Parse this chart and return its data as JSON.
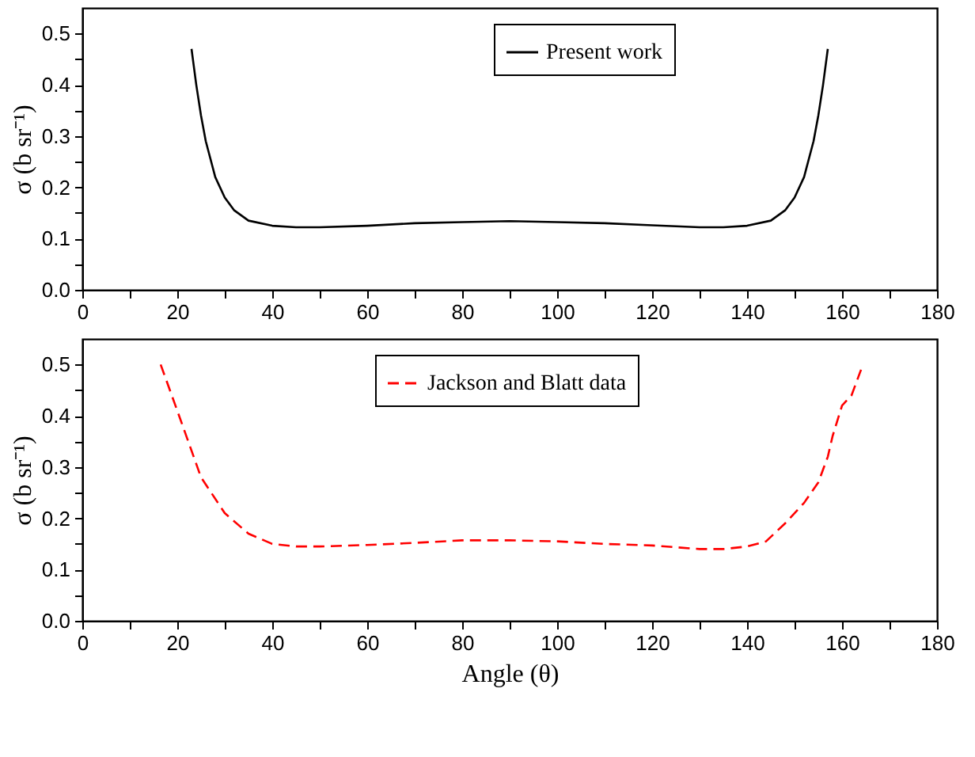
{
  "chart_data": [
    {
      "type": "line",
      "ylabel": "σ (b sr⁻¹)",
      "legend": "top right",
      "grid": false,
      "xlim": [
        0,
        180
      ],
      "ylim": [
        0,
        0.55
      ],
      "xticks": [
        0,
        {
          "value": 10,
          "label": null
        },
        20,
        {
          "value": 30,
          "label": null
        },
        40,
        {
          "value": 50,
          "label": null
        },
        60,
        {
          "value": 70,
          "label": null
        },
        80,
        {
          "value": 90,
          "label": null
        },
        100,
        {
          "value": 110,
          "label": null
        },
        120,
        {
          "value": 130,
          "label": null
        },
        140,
        {
          "value": 150,
          "label": null
        },
        160,
        {
          "value": 170,
          "label": null
        },
        180
      ],
      "yticks": [
        {
          "value": 0,
          "label": "0.0"
        },
        {
          "value": 0.05,
          "label": null
        },
        0.1,
        {
          "value": 0.15,
          "label": null
        },
        0.2,
        {
          "value": 0.25,
          "label": null
        },
        0.3,
        {
          "value": 0.35,
          "label": null
        },
        0.4,
        {
          "value": 0.45,
          "label": null
        },
        0.5
      ],
      "series": [
        {
          "name": "Present work",
          "color": "#000000",
          "line_style": "solid",
          "x": [
            23,
            24,
            25,
            26,
            28,
            30,
            32,
            35,
            40,
            45,
            50,
            60,
            70,
            80,
            90,
            100,
            110,
            120,
            130,
            135,
            140,
            145,
            148,
            150,
            152,
            154,
            155,
            156,
            157
          ],
          "values": [
            0.47,
            0.4,
            0.34,
            0.29,
            0.22,
            0.18,
            0.155,
            0.135,
            0.125,
            0.122,
            0.122,
            0.125,
            0.13,
            0.132,
            0.134,
            0.132,
            0.13,
            0.126,
            0.122,
            0.122,
            0.125,
            0.135,
            0.155,
            0.18,
            0.22,
            0.29,
            0.34,
            0.4,
            0.47
          ]
        }
      ]
    },
    {
      "type": "line",
      "xlabel": "Angle (θ)",
      "ylabel": "σ (b sr⁻¹)",
      "legend": "top right",
      "grid": false,
      "xlim": [
        0,
        180
      ],
      "ylim": [
        0,
        0.55
      ],
      "xticks": [
        0,
        {
          "value": 10,
          "label": null
        },
        20,
        {
          "value": 30,
          "label": null
        },
        40,
        {
          "value": 50,
          "label": null
        },
        60,
        {
          "value": 70,
          "label": null
        },
        80,
        {
          "value": 90,
          "label": null
        },
        100,
        {
          "value": 110,
          "label": null
        },
        120,
        {
          "value": 130,
          "label": null
        },
        140,
        {
          "value": 150,
          "label": null
        },
        160,
        {
          "value": 170,
          "label": null
        },
        180
      ],
      "yticks": [
        {
          "value": 0,
          "label": "0.0"
        },
        {
          "value": 0.05,
          "label": null
        },
        0.1,
        {
          "value": 0.15,
          "label": null
        },
        0.2,
        {
          "value": 0.25,
          "label": null
        },
        0.3,
        {
          "value": 0.35,
          "label": null
        },
        0.4,
        {
          "value": 0.45,
          "label": null
        },
        0.5
      ],
      "series": [
        {
          "name": "Jackson and Blatt data",
          "color": "#ff0000",
          "line_style": "dashed",
          "x": [
            16.5,
            20,
            25,
            30,
            35,
            40,
            45,
            50,
            60,
            70,
            80,
            90,
            100,
            110,
            120,
            130,
            135,
            140,
            144,
            148,
            152,
            155,
            157,
            158,
            160,
            162,
            164
          ],
          "values": [
            0.5,
            0.41,
            0.28,
            0.21,
            0.17,
            0.15,
            0.145,
            0.145,
            0.148,
            0.152,
            0.157,
            0.157,
            0.155,
            0.15,
            0.147,
            0.14,
            0.14,
            0.145,
            0.155,
            0.19,
            0.23,
            0.27,
            0.32,
            0.36,
            0.42,
            0.44,
            0.49
          ]
        }
      ]
    }
  ]
}
